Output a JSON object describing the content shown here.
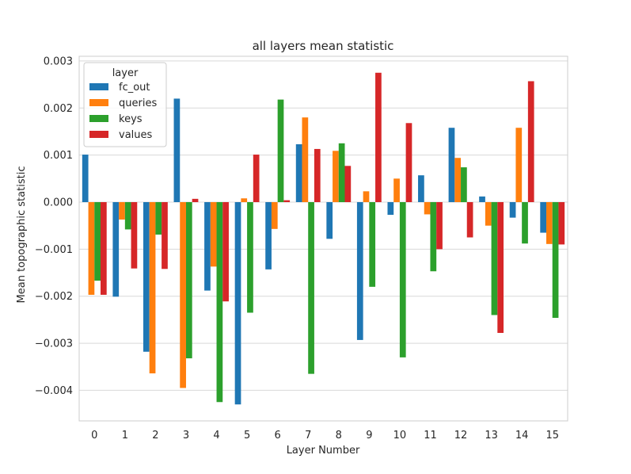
{
  "chart_data": {
    "type": "bar",
    "title": "all layers mean statistic",
    "xlabel": "Layer Number",
    "ylabel": "Mean topographic statistic",
    "categories": [
      "0",
      "1",
      "2",
      "3",
      "4",
      "5",
      "6",
      "7",
      "8",
      "9",
      "10",
      "11",
      "12",
      "13",
      "14",
      "15"
    ],
    "ylim": [
      -0.00465,
      0.0031
    ],
    "yticks": [
      0.003,
      0.002,
      0.001,
      0.0,
      -0.001,
      -0.002,
      -0.003,
      -0.004
    ],
    "ytick_labels": [
      "0.003",
      "0.002",
      "0.001",
      "0.000",
      "−0.001",
      "−0.002",
      "−0.003",
      "−0.004"
    ],
    "grid": true,
    "legend": {
      "title": "layer",
      "placement": "top-left"
    },
    "series": [
      {
        "name": "fc_out",
        "color": "#1f77b4",
        "values": [
          0.00101,
          -0.00201,
          -0.00318,
          0.0022,
          -0.00188,
          -0.0043,
          -0.00143,
          0.00123,
          -0.00078,
          -0.00293,
          -0.00027,
          0.00057,
          0.00158,
          0.00012,
          -0.00033,
          -0.00065
        ]
      },
      {
        "name": "queries",
        "color": "#ff7f0e",
        "values": [
          -0.00197,
          -0.00037,
          -0.00364,
          -0.00395,
          -0.00137,
          8e-05,
          -0.00057,
          0.0018,
          0.00109,
          0.00023,
          0.0005,
          -0.00026,
          0.00094,
          -0.0005,
          0.00158,
          -0.00089
        ]
      },
      {
        "name": "keys",
        "color": "#2ca02c",
        "values": [
          -0.00167,
          -0.00058,
          -0.00069,
          -0.00332,
          -0.00425,
          -0.00235,
          0.00218,
          -0.00365,
          0.00125,
          -0.0018,
          -0.0033,
          -0.00147,
          0.00074,
          -0.0024,
          -0.00088,
          -0.00246
        ]
      },
      {
        "name": "values",
        "color": "#d62728",
        "values": [
          -0.00197,
          -0.00141,
          -0.00142,
          7e-05,
          -0.00211,
          0.00101,
          4e-05,
          0.00113,
          0.00077,
          0.00275,
          0.00168,
          -0.001,
          -0.00075,
          -0.00278,
          0.00257,
          -0.0009
        ]
      }
    ]
  }
}
